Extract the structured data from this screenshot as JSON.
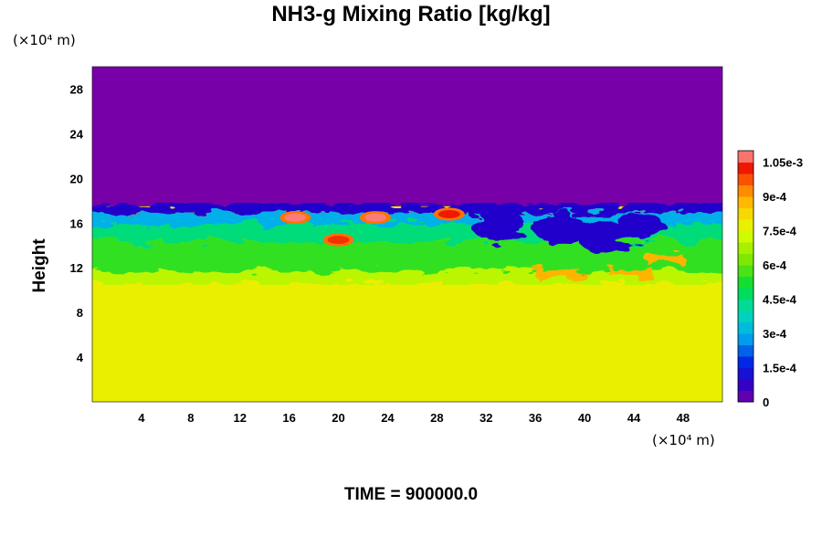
{
  "title": "NH3-g Mixing Ratio [kg/kg]",
  "time_label": "TIME = 900000.0",
  "chart_data": {
    "type": "heatmap",
    "title": "NH3-g Mixing Ratio [kg/kg]",
    "ylabel": "Height",
    "y_unit": "(×10⁴ m)",
    "x_unit": "(×10⁴ m)",
    "xlim": [
      0,
      51.2
    ],
    "ylim": [
      0,
      30
    ],
    "x_ticks": [
      4,
      8,
      12,
      16,
      20,
      24,
      28,
      32,
      36,
      40,
      44,
      48
    ],
    "y_ticks": [
      4,
      8,
      12,
      16,
      20,
      24,
      28
    ],
    "colorbar": {
      "min": 0,
      "max": 0.0011,
      "tick_values": [
        0,
        0.00015,
        0.0003,
        0.00045,
        0.0006,
        0.00075,
        0.0009,
        0.00105
      ],
      "tick_labels": [
        "0",
        "1.5e-4",
        "3e-4",
        "4.5e-4",
        "6e-4",
        "7.5e-4",
        "9e-4",
        "1.05e-3"
      ]
    },
    "regions": {
      "upper_value": 0,
      "lower_value": 0.00078,
      "cloud_top_height": 17.5,
      "mixing_layer_base": 10.5,
      "mixing_layer_value": 0.00055,
      "high_patches": [
        {
          "x": 16.5,
          "y": 16.5,
          "value": 0.00108
        },
        {
          "x": 23.0,
          "y": 16.5,
          "value": 0.00108
        },
        {
          "x": 29.0,
          "y": 16.8,
          "value": 0.00102
        },
        {
          "x": 20.0,
          "y": 14.5,
          "value": 0.001
        }
      ]
    }
  }
}
